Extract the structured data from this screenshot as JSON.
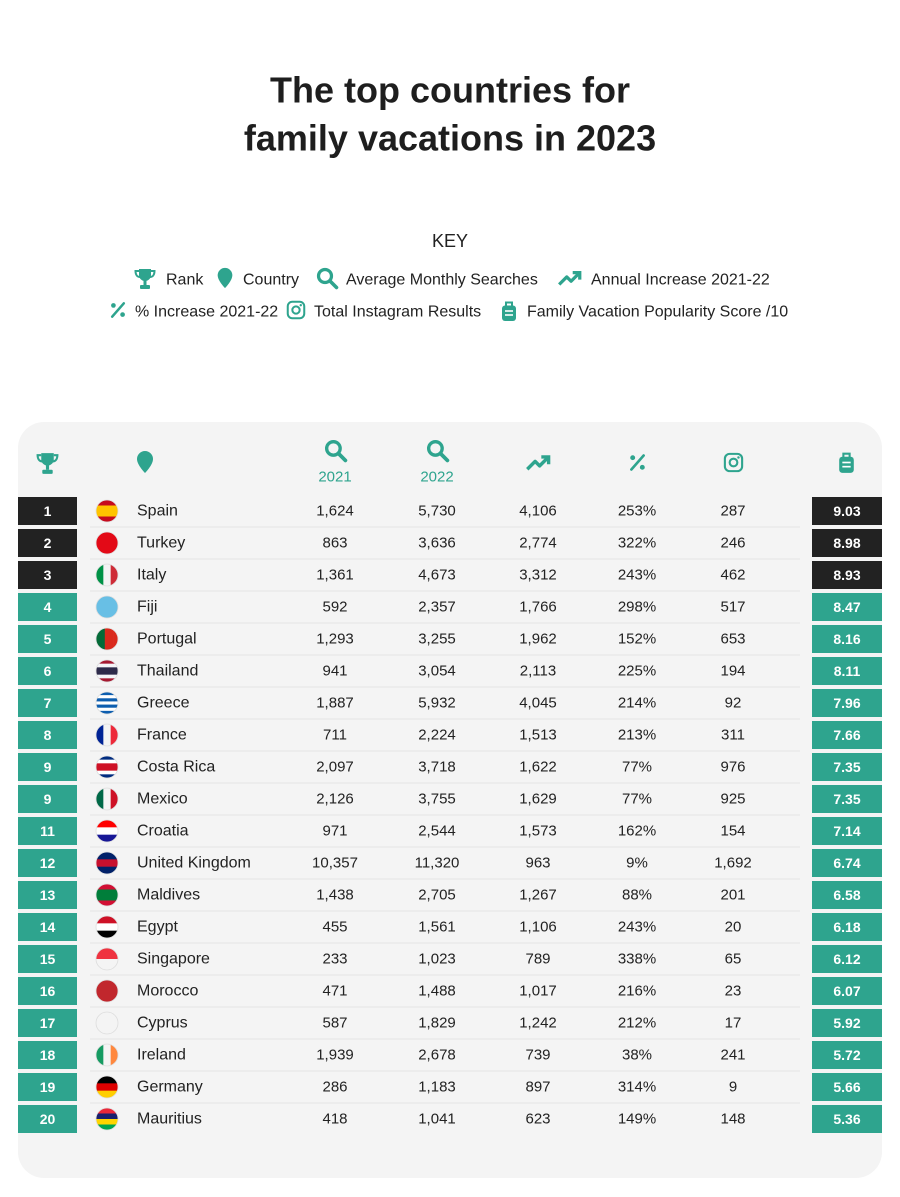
{
  "header": {
    "title_lines": [
      "The top countries for",
      "family vacations in 2023"
    ]
  },
  "key": {
    "title": "KEY",
    "items": [
      "Rank",
      "Country",
      "Average Monthly Searches",
      "Annual Increase 2021-22",
      "% Increase 2021-22",
      "Total Instagram Results",
      "Family Vacation Popularity Score /10"
    ]
  },
  "table": {
    "header_years": [
      "2021",
      "2022"
    ],
    "rows": [
      [
        "1",
        "Spain",
        "1,624",
        "5,730",
        "4,106",
        "253%",
        "287",
        "9.03"
      ],
      [
        "2",
        "Turkey",
        "863",
        "3,636",
        "2,774",
        "322%",
        "246",
        "8.98"
      ],
      [
        "3",
        "Italy",
        "1,361",
        "4,673",
        "3,312",
        "243%",
        "462",
        "8.93"
      ],
      [
        "4",
        "Fiji",
        "592",
        "2,357",
        "1,766",
        "298%",
        "517",
        "8.47"
      ],
      [
        "5",
        "Portugal",
        "1,293",
        "3,255",
        "1,962",
        "152%",
        "653",
        "8.16"
      ],
      [
        "6",
        "Thailand",
        "941",
        "3,054",
        "2,113",
        "225%",
        "194",
        "8.11"
      ],
      [
        "7",
        "Greece",
        "1,887",
        "5,932",
        "4,045",
        "214%",
        "92",
        "7.96"
      ],
      [
        "8",
        "France",
        "711",
        "2,224",
        "1,513",
        "213%",
        "311",
        "7.66"
      ],
      [
        "9",
        "Costa Rica",
        "2,097",
        "3,718",
        "1,622",
        "77%",
        "976",
        "7.35"
      ],
      [
        "9",
        "Mexico",
        "2,126",
        "3,755",
        "1,629",
        "77%",
        "925",
        "7.35"
      ],
      [
        "11",
        "Croatia",
        "971",
        "2,544",
        "1,573",
        "162%",
        "154",
        "7.14"
      ],
      [
        "12",
        "United Kingdom",
        "10,357",
        "11,320",
        "963",
        "9%",
        "1,692",
        "6.74"
      ],
      [
        "13",
        "Maldives",
        "1,438",
        "2,705",
        "1,267",
        "88%",
        "201",
        "6.58"
      ],
      [
        "14",
        "Egypt",
        "455",
        "1,561",
        "1,106",
        "243%",
        "20",
        "6.18"
      ],
      [
        "15",
        "Singapore",
        "233",
        "1,023",
        "789",
        "338%",
        "65",
        "6.12"
      ],
      [
        "16",
        "Morocco",
        "471",
        "1,488",
        "1,017",
        "216%",
        "23",
        "6.07"
      ],
      [
        "17",
        "Cyprus",
        "587",
        "1,829",
        "1,242",
        "212%",
        "17",
        "5.92"
      ],
      [
        "18",
        "Ireland",
        "1,939",
        "2,678",
        "739",
        "38%",
        "241",
        "5.72"
      ],
      [
        "19",
        "Germany",
        "286",
        "1,183",
        "897",
        "314%",
        "9",
        "5.66"
      ],
      [
        "20",
        "Mauritius",
        "418",
        "1,041",
        "623",
        "149%",
        "148",
        "5.36"
      ]
    ]
  }
}
